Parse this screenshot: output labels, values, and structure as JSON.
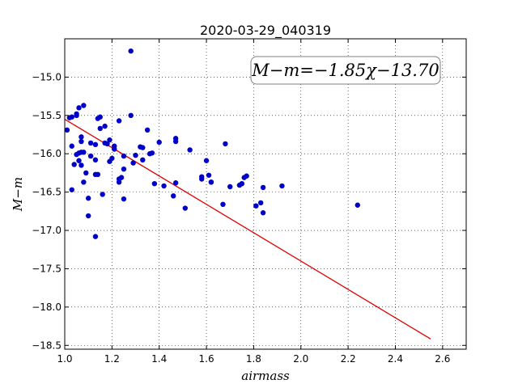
{
  "chart_data": {
    "type": "scatter",
    "title": "2020-03-29_040319",
    "xlabel": "airmass",
    "ylabel": "M−m",
    "xlim": [
      1.0,
      2.7
    ],
    "ylim": [
      -18.55,
      -14.5
    ],
    "x_ticks": [
      1.0,
      1.2,
      1.4,
      1.6,
      1.8,
      2.0,
      2.2,
      2.4,
      2.6
    ],
    "x_tick_labels": [
      "1.0",
      "1.2",
      "1.4",
      "1.6",
      "1.8",
      "2.0",
      "2.2",
      "2.4",
      "2.6"
    ],
    "y_ticks": [
      -15.0,
      -15.5,
      -16.0,
      -16.5,
      -17.0,
      -17.5,
      -18.0,
      -18.5
    ],
    "y_tick_labels": [
      "−15.0",
      "−15.5",
      "−16.0",
      "−16.5",
      "−17.0",
      "−17.5",
      "−18.0",
      "−18.5"
    ],
    "grid": true,
    "annotation": "M−m=−1.85χ−13.70",
    "fit": {
      "slope": -1.85,
      "intercept": -13.7,
      "x_range": [
        1.0,
        2.55
      ],
      "color": "#dd0000"
    },
    "marker_color": "#0000c8",
    "series": [
      {
        "points": [
          [
            1.01,
            -15.69
          ],
          [
            1.02,
            -15.53
          ],
          [
            1.03,
            -15.52
          ],
          [
            1.03,
            -15.9
          ],
          [
            1.03,
            -16.47
          ],
          [
            1.04,
            -16.14
          ],
          [
            1.05,
            -15.5
          ],
          [
            1.05,
            -15.48
          ],
          [
            1.05,
            -16.01
          ],
          [
            1.06,
            -15.99
          ],
          [
            1.06,
            -16.09
          ],
          [
            1.06,
            -15.4
          ],
          [
            1.07,
            -15.84
          ],
          [
            1.07,
            -15.78
          ],
          [
            1.07,
            -16.15
          ],
          [
            1.07,
            -15.98
          ],
          [
            1.08,
            -15.98
          ],
          [
            1.08,
            -15.37
          ],
          [
            1.08,
            -16.37
          ],
          [
            1.09,
            -16.25
          ],
          [
            1.1,
            -16.58
          ],
          [
            1.1,
            -16.81
          ],
          [
            1.11,
            -16.03
          ],
          [
            1.11,
            -15.86
          ],
          [
            1.13,
            -15.88
          ],
          [
            1.13,
            -16.08
          ],
          [
            1.13,
            -16.27
          ],
          [
            1.13,
            -17.08
          ],
          [
            1.14,
            -16.27
          ],
          [
            1.14,
            -15.54
          ],
          [
            1.15,
            -15.67
          ],
          [
            1.15,
            -15.52
          ],
          [
            1.16,
            -16.53
          ],
          [
            1.17,
            -15.86
          ],
          [
            1.17,
            -15.64
          ],
          [
            1.18,
            -15.87
          ],
          [
            1.19,
            -15.82
          ],
          [
            1.19,
            -16.1
          ],
          [
            1.2,
            -16.06
          ],
          [
            1.21,
            -15.9
          ],
          [
            1.21,
            -15.94
          ],
          [
            1.23,
            -16.37
          ],
          [
            1.23,
            -16.33
          ],
          [
            1.23,
            -15.57
          ],
          [
            1.24,
            -16.31
          ],
          [
            1.25,
            -16.59
          ],
          [
            1.25,
            -16.03
          ],
          [
            1.25,
            -16.2
          ],
          [
            1.28,
            -14.66
          ],
          [
            1.28,
            -15.5
          ],
          [
            1.29,
            -16.12
          ],
          [
            1.3,
            -16.02
          ],
          [
            1.32,
            -15.91
          ],
          [
            1.33,
            -16.08
          ],
          [
            1.33,
            -15.92
          ],
          [
            1.35,
            -15.69
          ],
          [
            1.36,
            -16.0
          ],
          [
            1.37,
            -15.99
          ],
          [
            1.38,
            -16.39
          ],
          [
            1.4,
            -15.85
          ],
          [
            1.42,
            -16.42
          ],
          [
            1.46,
            -16.55
          ],
          [
            1.47,
            -16.38
          ],
          [
            1.47,
            -15.8
          ],
          [
            1.47,
            -15.84
          ],
          [
            1.51,
            -16.71
          ],
          [
            1.53,
            -15.95
          ],
          [
            1.58,
            -16.33
          ],
          [
            1.58,
            -16.3
          ],
          [
            1.6,
            -16.09
          ],
          [
            1.61,
            -16.28
          ],
          [
            1.62,
            -16.37
          ],
          [
            1.62,
            -16.37
          ],
          [
            1.67,
            -16.66
          ],
          [
            1.68,
            -15.87
          ],
          [
            1.7,
            -16.43
          ],
          [
            1.74,
            -16.41
          ],
          [
            1.75,
            -16.39
          ],
          [
            1.76,
            -16.31
          ],
          [
            1.77,
            -16.29
          ],
          [
            1.81,
            -16.68
          ],
          [
            1.83,
            -16.64
          ],
          [
            1.84,
            -16.44
          ],
          [
            1.84,
            -16.77
          ],
          [
            1.92,
            -16.42
          ],
          [
            2.24,
            -16.67
          ]
        ]
      }
    ]
  }
}
